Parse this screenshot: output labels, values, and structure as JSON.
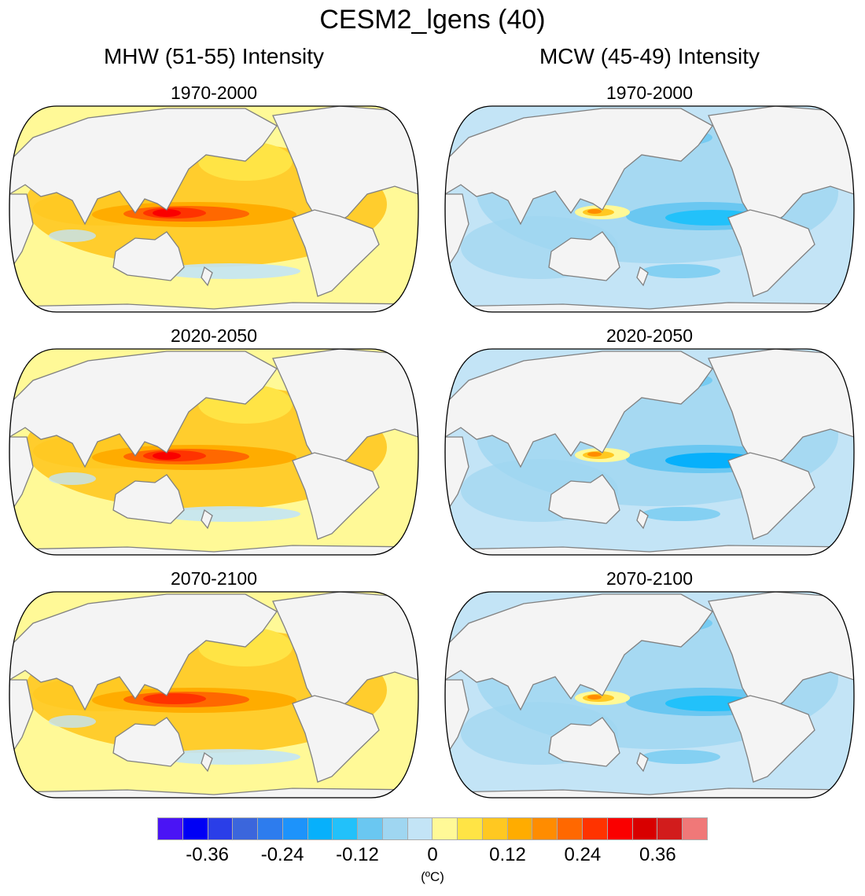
{
  "title": "CESM2_lgens (40)",
  "columns": [
    {
      "title": "MHW (51-55) Intensity",
      "theme": "warm",
      "panels": [
        "1970-2000",
        "2020-2050",
        "2070-2100"
      ]
    },
    {
      "title": "MCW (45-49) Intensity",
      "theme": "cool",
      "panels": [
        "1970-2000",
        "2020-2050",
        "2070-2100"
      ]
    }
  ],
  "colorbar": {
    "levels": [
      -0.4,
      -0.36,
      -0.32,
      -0.28,
      -0.24,
      -0.2,
      -0.16,
      -0.12,
      -0.08,
      -0.04,
      0,
      0.04,
      0.08,
      0.12,
      0.16,
      0.2,
      0.24,
      0.28,
      0.32,
      0.36,
      0.4
    ],
    "tick_labels": [
      "-0.36",
      "-0.24",
      "-0.12",
      "0",
      "0.12",
      "0.24",
      "0.36"
    ],
    "tick_values": [
      -0.36,
      -0.24,
      -0.12,
      0,
      0.12,
      0.24,
      0.36
    ],
    "units": "(ºC)",
    "colors": [
      "#4a14f5",
      "#0000f5",
      "#2a3ee8",
      "#3b66dc",
      "#2d7cee",
      "#1d93fb",
      "#07b0fb",
      "#22c1fa",
      "#6ac7f1",
      "#9fd6f1",
      "#c3e4f6",
      "#fff997",
      "#ffe445",
      "#ffc821",
      "#ffac00",
      "#ff8c00",
      "#ff6800",
      "#ff3300",
      "#fa0000",
      "#d80000",
      "#d21c1c",
      "#f07878"
    ]
  },
  "land_color": "#f4f4f4",
  "coast_color": "#808080"
}
